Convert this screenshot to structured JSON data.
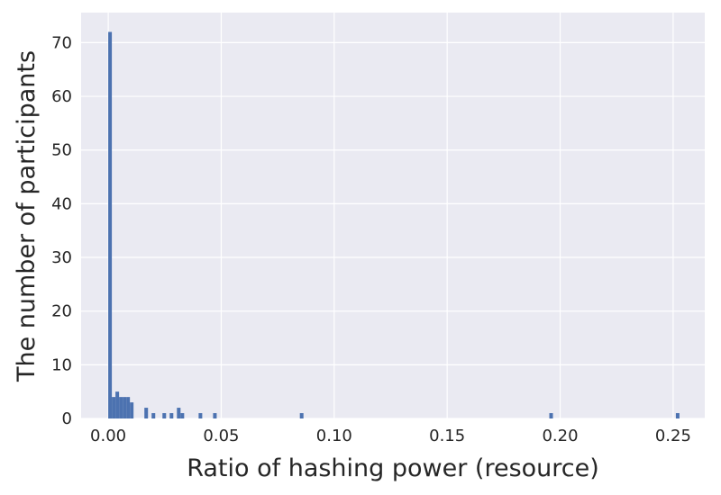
{
  "chart_data": {
    "type": "bar",
    "subtype": "histogram",
    "title": "",
    "xlabel": "Ratio of hashing power (resource)",
    "ylabel": "The number of participants",
    "xlim": [
      -0.012,
      0.264
    ],
    "ylim": [
      0,
      75.6
    ],
    "bin_width": 0.0016,
    "x_ticks": [
      {
        "value": 0.0,
        "label": "0.00"
      },
      {
        "value": 0.05,
        "label": "0.05"
      },
      {
        "value": 0.1,
        "label": "0.10"
      },
      {
        "value": 0.15,
        "label": "0.15"
      },
      {
        "value": 0.2,
        "label": "0.20"
      },
      {
        "value": 0.25,
        "label": "0.25"
      }
    ],
    "y_ticks": [
      {
        "value": 0,
        "label": "0"
      },
      {
        "value": 10,
        "label": "10"
      },
      {
        "value": 20,
        "label": "20"
      },
      {
        "value": 30,
        "label": "30"
      },
      {
        "value": 40,
        "label": "40"
      },
      {
        "value": 50,
        "label": "50"
      },
      {
        "value": 60,
        "label": "60"
      },
      {
        "value": 70,
        "label": "70"
      }
    ],
    "bins": [
      {
        "x": 0.0,
        "count": 72
      },
      {
        "x": 0.0016,
        "count": 4
      },
      {
        "x": 0.0032,
        "count": 5
      },
      {
        "x": 0.0048,
        "count": 4
      },
      {
        "x": 0.0064,
        "count": 4
      },
      {
        "x": 0.008,
        "count": 4
      },
      {
        "x": 0.0096,
        "count": 3
      },
      {
        "x": 0.016,
        "count": 2
      },
      {
        "x": 0.0192,
        "count": 1
      },
      {
        "x": 0.024,
        "count": 1
      },
      {
        "x": 0.0272,
        "count": 1
      },
      {
        "x": 0.0304,
        "count": 2
      },
      {
        "x": 0.032,
        "count": 1
      },
      {
        "x": 0.04,
        "count": 1
      },
      {
        "x": 0.0464,
        "count": 1
      },
      {
        "x": 0.0848,
        "count": 1
      },
      {
        "x": 0.1952,
        "count": 1
      },
      {
        "x": 0.2512,
        "count": 1
      }
    ],
    "grid": true,
    "colors": {
      "bar": "#4c72b0",
      "plot_background": "#eaeaf2",
      "grid": "#ffffff",
      "text": "#262626"
    }
  }
}
